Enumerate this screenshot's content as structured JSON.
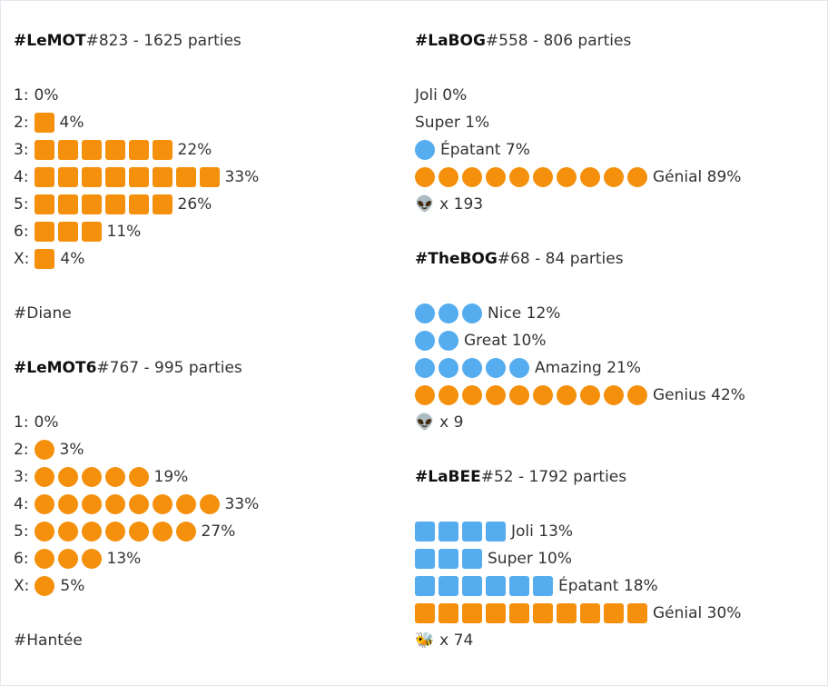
{
  "columns": [
    [
      {
        "title": {
          "tag": "#LeMOT",
          "rest": "#823 - 1625 parties"
        },
        "rows": [
          {
            "prefix": "1:",
            "icons": 0,
            "shape": "square",
            "color": "#f4900c",
            "text": "0%"
          },
          {
            "prefix": "2:",
            "icons": 1,
            "shape": "square",
            "color": "#f4900c",
            "text": "4%"
          },
          {
            "prefix": "3:",
            "icons": 6,
            "shape": "square",
            "color": "#f4900c",
            "text": "22%"
          },
          {
            "prefix": "4:",
            "icons": 8,
            "shape": "square",
            "color": "#f4900c",
            "text": "33%"
          },
          {
            "prefix": "5:",
            "icons": 6,
            "shape": "square",
            "color": "#f4900c",
            "text": "26%"
          },
          {
            "prefix": "6:",
            "icons": 3,
            "shape": "square",
            "color": "#f4900c",
            "text": "11%"
          },
          {
            "prefix": "X:",
            "icons": 1,
            "shape": "square",
            "color": "#f4900c",
            "text": "4%"
          }
        ]
      },
      {
        "text": "#Diane"
      },
      {
        "title": {
          "tag": "#LeMOT6",
          "rest": "#767 - 995 parties"
        },
        "rows": [
          {
            "prefix": "1:",
            "icons": 0,
            "shape": "circle",
            "color": "#f4900c",
            "text": "0%"
          },
          {
            "prefix": "2:",
            "icons": 1,
            "shape": "circle",
            "color": "#f4900c",
            "text": "3%"
          },
          {
            "prefix": "3:",
            "icons": 5,
            "shape": "circle",
            "color": "#f4900c",
            "text": "19%"
          },
          {
            "prefix": "4:",
            "icons": 8,
            "shape": "circle",
            "color": "#f4900c",
            "text": "33%"
          },
          {
            "prefix": "5:",
            "icons": 7,
            "shape": "circle",
            "color": "#f4900c",
            "text": "27%"
          },
          {
            "prefix": "6:",
            "icons": 3,
            "shape": "circle",
            "color": "#f4900c",
            "text": "13%"
          },
          {
            "prefix": "X:",
            "icons": 1,
            "shape": "circle",
            "color": "#f4900c",
            "text": "5%"
          }
        ]
      },
      {
        "text": "#Hantée"
      }
    ],
    [
      {
        "title": {
          "tag": "#LaBOG",
          "rest": "#558 - 806 parties"
        },
        "rows": [
          {
            "icons": 0,
            "shape": "circle",
            "color": "#55acee",
            "text": "Joli 0%"
          },
          {
            "icons": 0,
            "shape": "circle",
            "color": "#55acee",
            "text": "Super 1%"
          },
          {
            "icons": 1,
            "shape": "circle",
            "color": "#55acee",
            "text": "Épatant 7%"
          },
          {
            "icons": 10,
            "shape": "circle",
            "color": "#f4900c",
            "text": "Génial 89%"
          },
          {
            "prefix": "👽",
            "icons": 0,
            "shape": "circle",
            "color": "#f4900c",
            "text": "x 193"
          }
        ]
      },
      {
        "title": {
          "tag": "#TheBOG",
          "rest": "#68 - 84 parties"
        },
        "rows": [
          {
            "icons": 3,
            "shape": "circle",
            "color": "#55acee",
            "text": "Nice 12%"
          },
          {
            "icons": 2,
            "shape": "circle",
            "color": "#55acee",
            "text": "Great 10%"
          },
          {
            "icons": 5,
            "shape": "circle",
            "color": "#55acee",
            "text": "Amazing 21%"
          },
          {
            "icons": 10,
            "shape": "circle",
            "color": "#f4900c",
            "text": "Genius 42%"
          },
          {
            "prefix": "👽",
            "icons": 0,
            "shape": "circle",
            "color": "#f4900c",
            "text": "x 9"
          }
        ]
      },
      {
        "title": {
          "tag": "#LaBEE",
          "rest": "#52 - 1792 parties"
        },
        "rows": [
          {
            "icons": 4,
            "shape": "square",
            "color": "#55acee",
            "text": "Joli 13%"
          },
          {
            "icons": 3,
            "shape": "square",
            "color": "#55acee",
            "text": "Super 10%"
          },
          {
            "icons": 6,
            "shape": "square",
            "color": "#55acee",
            "text": "Épatant 18%"
          },
          {
            "icons": 10,
            "shape": "square",
            "color": "#f4900c",
            "text": "Génial 30%"
          },
          {
            "prefix": "🐝",
            "icons": 0,
            "shape": "square",
            "color": "#f4900c",
            "text": "x 74"
          }
        ]
      }
    ]
  ]
}
